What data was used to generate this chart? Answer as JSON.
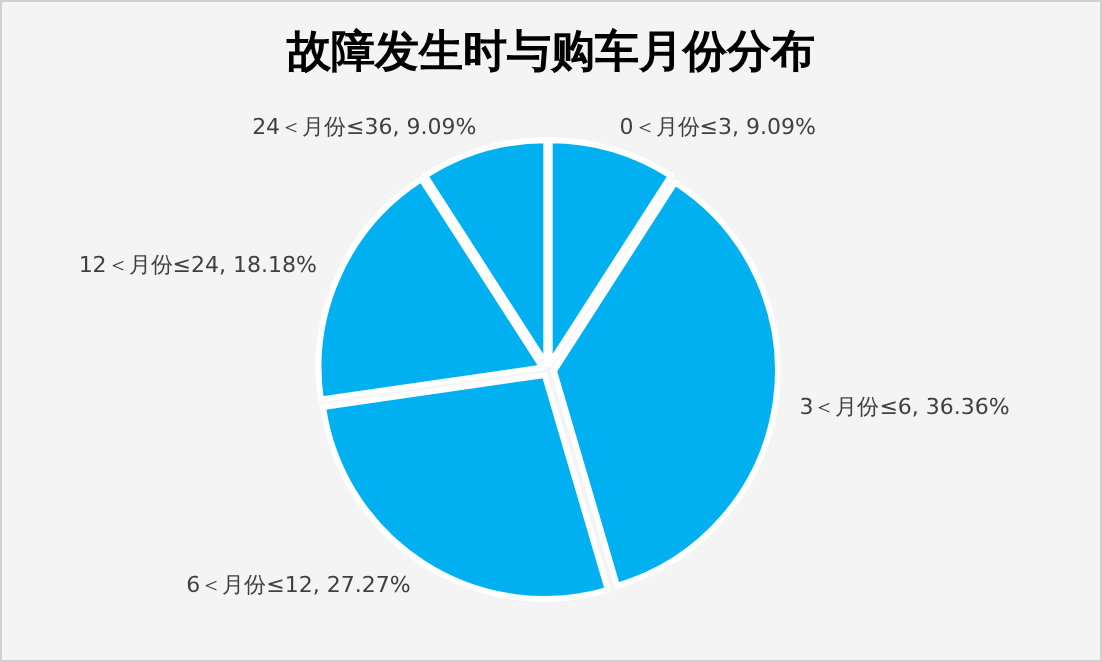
{
  "chart_data": {
    "type": "pie",
    "title": "故障发生时与购车月份分布",
    "categories": [
      "0＜月份≤3",
      "3＜月份≤6",
      "6＜月份≤12",
      "12＜月份≤24",
      "24＜月份≤36"
    ],
    "values": [
      9.09,
      36.36,
      27.27,
      18.18,
      9.09
    ],
    "colors": [
      "#00b0f0",
      "#00b0f0",
      "#00b0f0",
      "#00b0f0",
      "#00b0f0"
    ],
    "value_labels": [
      ", 9.09%",
      ", 36.36%",
      ", 27.27%",
      ", 18.18%",
      ", 9.09%"
    ]
  }
}
